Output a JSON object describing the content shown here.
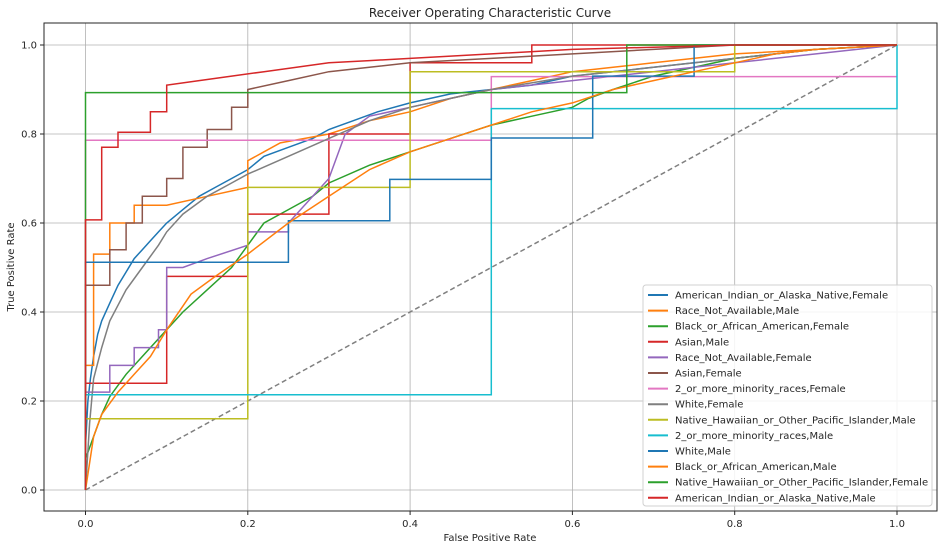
{
  "chart_data": {
    "type": "line",
    "title": "Receiver Operating Characteristic Curve",
    "xlabel": "False Positive Rate",
    "ylabel": "True Positive Rate",
    "xlim": [
      -0.05,
      1.05
    ],
    "ylim": [
      -0.05,
      1.05
    ],
    "xticks": [
      0.0,
      0.2,
      0.4,
      0.6,
      0.8,
      1.0
    ],
    "yticks": [
      0.0,
      0.2,
      0.4,
      0.6,
      0.8,
      1.0
    ],
    "xtick_labels": [
      "0.0",
      "0.2",
      "0.4",
      "0.6",
      "0.8",
      "1.0"
    ],
    "ytick_labels": [
      "0.0",
      "0.2",
      "0.4",
      "0.6",
      "0.8",
      "1.0"
    ],
    "grid": true,
    "legend_position": "lower right",
    "reference_line": {
      "x": [
        0,
        1
      ],
      "y": [
        0,
        1
      ],
      "style": "dashed",
      "color": "#808080"
    },
    "series": [
      {
        "name": "American_Indian_or_Alaska_Native,Female",
        "color": "#1f77b4",
        "x": [
          0,
          0,
          0.003,
          0.006,
          0.01,
          0.015,
          0.02,
          0.03,
          0.04,
          0.05,
          0.06,
          0.07,
          0.08,
          0.09,
          0.1,
          0.12,
          0.14,
          0.16,
          0.18,
          0.2,
          0.22,
          0.25,
          0.28,
          0.3,
          0.33,
          0.36,
          0.4,
          0.45,
          0.5,
          0.55,
          0.6,
          0.65,
          0.7,
          0.75,
          0.8,
          0.85,
          0.9,
          0.95,
          1.0
        ],
        "y": [
          0,
          0.1,
          0.2,
          0.25,
          0.3,
          0.35,
          0.38,
          0.42,
          0.46,
          0.49,
          0.52,
          0.54,
          0.56,
          0.58,
          0.6,
          0.63,
          0.66,
          0.68,
          0.7,
          0.72,
          0.75,
          0.77,
          0.79,
          0.81,
          0.83,
          0.85,
          0.87,
          0.89,
          0.9,
          0.91,
          0.93,
          0.94,
          0.95,
          0.96,
          0.97,
          0.98,
          0.99,
          0.995,
          1.0
        ]
      },
      {
        "name": "Race_Not_Available,Male",
        "color": "#ff7f0e",
        "x": [
          0,
          0,
          0.01,
          0.01,
          0.03,
          0.03,
          0.06,
          0.06,
          0.1,
          0.15,
          0.2,
          0.2,
          0.22,
          0.24,
          0.3,
          0.35,
          0.4,
          0.45,
          0.5,
          0.55,
          0.6,
          0.65,
          0.7,
          0.8,
          0.9,
          1.0
        ],
        "y": [
          0,
          0.28,
          0.28,
          0.53,
          0.53,
          0.6,
          0.6,
          0.64,
          0.64,
          0.66,
          0.68,
          0.74,
          0.76,
          0.78,
          0.8,
          0.83,
          0.85,
          0.88,
          0.9,
          0.92,
          0.94,
          0.95,
          0.96,
          0.98,
          0.99,
          1.0
        ]
      },
      {
        "name": "Black_or_African_American,Female",
        "color": "#2ca02c",
        "x": [
          0,
          0,
          0.01,
          0.02,
          0.03,
          0.05,
          0.07,
          0.1,
          0.12,
          0.15,
          0.18,
          0.2,
          0.22,
          0.25,
          0.28,
          0.3,
          0.35,
          0.4,
          0.45,
          0.5,
          0.55,
          0.6,
          0.62,
          0.65,
          0.7,
          0.8,
          0.9,
          1.0
        ],
        "y": [
          0,
          0.07,
          0.12,
          0.17,
          0.21,
          0.26,
          0.3,
          0.36,
          0.4,
          0.45,
          0.5,
          0.55,
          0.6,
          0.63,
          0.66,
          0.69,
          0.73,
          0.76,
          0.79,
          0.82,
          0.84,
          0.86,
          0.88,
          0.9,
          0.93,
          0.97,
          0.99,
          1.0
        ]
      },
      {
        "name": "Asian,Male",
        "color": "#d62728",
        "x": [
          0,
          0,
          0.1,
          0.1,
          0.2,
          0.2,
          0.3,
          0.3,
          0.4,
          0.4,
          0.55,
          0.55,
          1.0
        ],
        "y": [
          0,
          0.24,
          0.24,
          0.48,
          0.48,
          0.62,
          0.62,
          0.8,
          0.8,
          0.96,
          0.96,
          1.0,
          1.0
        ]
      },
      {
        "name": "Race_Not_Available,Female",
        "color": "#9467bd",
        "x": [
          0,
          0,
          0.03,
          0.03,
          0.06,
          0.06,
          0.09,
          0.09,
          0.1,
          0.1,
          0.12,
          0.15,
          0.2,
          0.2,
          0.25,
          0.25,
          0.3,
          0.32,
          0.35,
          0.4,
          0.45,
          0.5,
          0.6,
          0.7,
          0.8,
          0.9,
          1.0
        ],
        "y": [
          0,
          0.22,
          0.22,
          0.28,
          0.28,
          0.32,
          0.32,
          0.36,
          0.36,
          0.5,
          0.5,
          0.52,
          0.55,
          0.58,
          0.58,
          0.6,
          0.7,
          0.8,
          0.84,
          0.86,
          0.88,
          0.9,
          0.92,
          0.94,
          0.96,
          0.98,
          1.0
        ]
      },
      {
        "name": "Asian,Female",
        "color": "#8c564b",
        "x": [
          0,
          0,
          0.03,
          0.03,
          0.05,
          0.05,
          0.07,
          0.07,
          0.1,
          0.1,
          0.12,
          0.12,
          0.15,
          0.15,
          0.18,
          0.18,
          0.2,
          0.2,
          0.25,
          0.3,
          0.35,
          0.4,
          0.5,
          0.6,
          0.7,
          0.8,
          1.0
        ],
        "y": [
          0,
          0.46,
          0.46,
          0.54,
          0.54,
          0.6,
          0.6,
          0.66,
          0.66,
          0.7,
          0.7,
          0.77,
          0.77,
          0.81,
          0.81,
          0.86,
          0.86,
          0.9,
          0.92,
          0.94,
          0.95,
          0.96,
          0.97,
          0.98,
          0.99,
          1.0,
          1.0
        ]
      },
      {
        "name": "2_or_more_minority_races,Female",
        "color": "#e377c2",
        "x": [
          0,
          0,
          0.5,
          0.5,
          1.0
        ],
        "y": [
          0,
          0.786,
          0.786,
          0.929,
          0.929
        ]
      },
      {
        "name": "White,Female",
        "color": "#7f7f7f",
        "x": [
          0,
          0.005,
          0.01,
          0.02,
          0.03,
          0.05,
          0.07,
          0.09,
          0.1,
          0.12,
          0.15,
          0.18,
          0.2,
          0.25,
          0.3,
          0.35,
          0.4,
          0.5,
          0.6,
          0.7,
          0.8,
          0.9,
          1.0
        ],
        "y": [
          0,
          0.15,
          0.25,
          0.32,
          0.38,
          0.45,
          0.5,
          0.55,
          0.58,
          0.62,
          0.66,
          0.69,
          0.71,
          0.75,
          0.79,
          0.83,
          0.86,
          0.9,
          0.93,
          0.95,
          0.97,
          0.99,
          1.0
        ]
      },
      {
        "name": "Native_Hawaiian_or_Other_Pacific_Islander,Male",
        "color": "#bcbd22",
        "x": [
          0,
          0,
          0.2,
          0.2,
          0.4,
          0.4,
          0.8,
          0.8,
          1.0
        ],
        "y": [
          0,
          0.16,
          0.16,
          0.68,
          0.68,
          0.94,
          0.94,
          1.0,
          1.0
        ]
      },
      {
        "name": "2_or_more_minority_races,Male",
        "color": "#17becf",
        "x": [
          0,
          0,
          0.5,
          0.5,
          1.0,
          1.0
        ],
        "y": [
          0,
          0.214,
          0.214,
          0.857,
          0.857,
          1.0
        ]
      },
      {
        "name": "White,Male",
        "color": "#1f77b4",
        "x": [
          0,
          0,
          0.25,
          0.25,
          0.375,
          0.375,
          0.5,
          0.5,
          0.625,
          0.625,
          0.75,
          0.75,
          1.0
        ],
        "y": [
          0,
          0.512,
          0.512,
          0.605,
          0.605,
          0.698,
          0.698,
          0.791,
          0.791,
          0.93,
          0.93,
          1.0,
          1.0
        ]
      },
      {
        "name": "Black_or_African_American,Male",
        "color": "#ff7f0e",
        "x": [
          0,
          0.01,
          0.02,
          0.04,
          0.06,
          0.08,
          0.1,
          0.13,
          0.16,
          0.2,
          0.25,
          0.3,
          0.35,
          0.4,
          0.45,
          0.5,
          0.55,
          0.6,
          0.65,
          0.7,
          0.75,
          0.8,
          0.85,
          0.9,
          0.95,
          1.0
        ],
        "y": [
          0,
          0.12,
          0.17,
          0.22,
          0.26,
          0.3,
          0.36,
          0.44,
          0.48,
          0.53,
          0.6,
          0.66,
          0.72,
          0.76,
          0.79,
          0.82,
          0.85,
          0.87,
          0.9,
          0.92,
          0.94,
          0.96,
          0.98,
          0.99,
          0.995,
          1.0
        ]
      },
      {
        "name": "Native_Hawaiian_or_Other_Pacific_Islander,Female",
        "color": "#2ca02c",
        "x": [
          0,
          0,
          0.667,
          0.667,
          1.0
        ],
        "y": [
          0,
          0.893,
          0.893,
          1.0,
          1.0
        ]
      },
      {
        "name": "American_Indian_or_Alaska_Native,Male",
        "color": "#d62728",
        "x": [
          0,
          0,
          0.02,
          0.02,
          0.04,
          0.04,
          0.08,
          0.08,
          0.1,
          0.1,
          0.14,
          0.18,
          0.22,
          0.26,
          0.3,
          0.35,
          0.4,
          0.5,
          0.6,
          0.7,
          0.8,
          1.0
        ],
        "y": [
          0,
          0.607,
          0.607,
          0.77,
          0.77,
          0.804,
          0.804,
          0.85,
          0.85,
          0.91,
          0.92,
          0.93,
          0.94,
          0.95,
          0.96,
          0.965,
          0.97,
          0.98,
          0.99,
          0.995,
          1.0,
          1.0
        ]
      }
    ]
  }
}
